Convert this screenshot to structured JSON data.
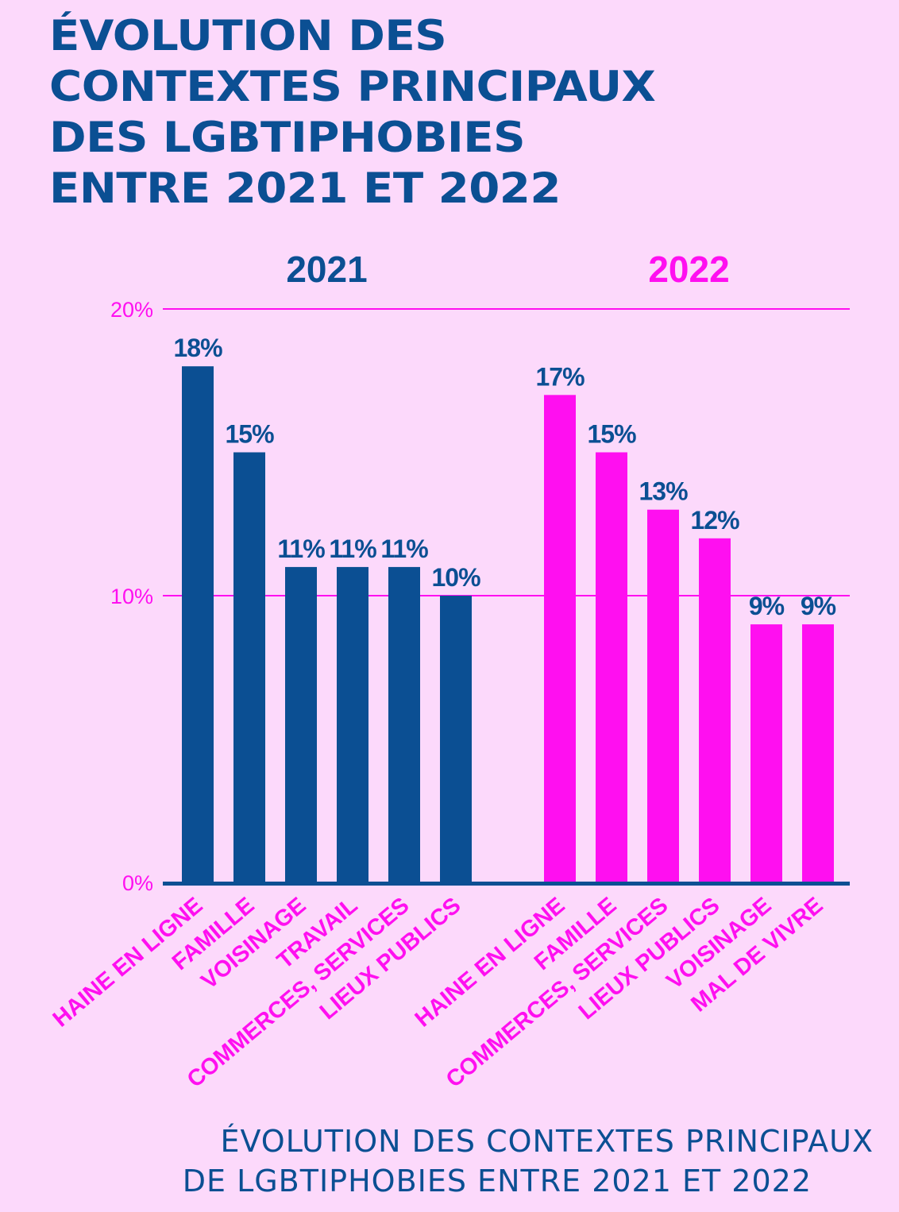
{
  "title_lines": [
    "ÉVOLUTION DES",
    "CONTEXTES PRINCIPAUX",
    "DES LGBTIPHOBIES",
    "ENTRE 2021 ET 2022"
  ],
  "caption_lines": [
    "ÉVOLUTION DES CONTEXTES PRINCIPAUX",
    "DE LGBTIPHOBIES ENTRE 2021 ET 2022"
  ],
  "colors": {
    "background": "#fcd9fb",
    "navy": "#0b4f93",
    "magenta": "#ff0ff0"
  },
  "chart_data": {
    "type": "bar",
    "title": "Évolution des contextes principaux des LGBTIphobies entre 2021 et 2022",
    "xlabel": "",
    "ylabel": "",
    "ylim": [
      0,
      20
    ],
    "yticks": [
      0,
      10,
      20
    ],
    "ytick_labels": [
      "0%",
      "10%",
      "20%"
    ],
    "grid": true,
    "legend": "none",
    "groups": [
      {
        "name": "2021",
        "color": "#0b4f93",
        "categories": [
          "HAINE EN LIGNE",
          "FAMILLE",
          "VOISINAGE",
          "TRAVAIL",
          "COMMERCES, SERVICES",
          "LIEUX PUBLICS"
        ],
        "values": [
          18,
          15,
          11,
          11,
          11,
          10
        ],
        "value_labels": [
          "18%",
          "15%",
          "11%",
          "11%",
          "11%",
          "10%"
        ]
      },
      {
        "name": "2022",
        "color": "#ff0ff0",
        "categories": [
          "HAINE EN LIGNE",
          "FAMILLE",
          "COMMERCES, SERVICES",
          "LIEUX PUBLICS",
          "VOISINAGE",
          "MAL DE VIVRE"
        ],
        "values": [
          17,
          15,
          13,
          12,
          9,
          9
        ],
        "value_labels": [
          "17%",
          "15%",
          "13%",
          "12%",
          "9%",
          "9%"
        ]
      }
    ]
  }
}
